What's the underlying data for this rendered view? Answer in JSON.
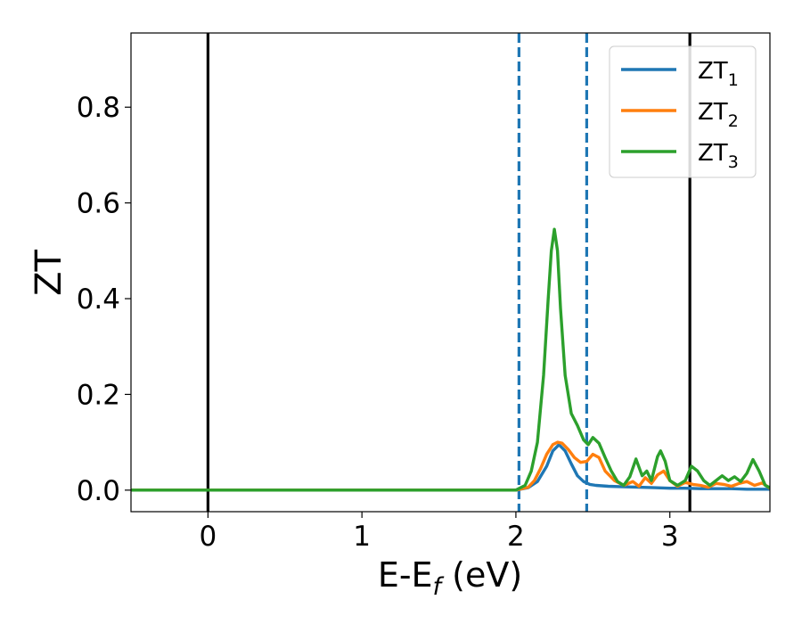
{
  "chart_data": {
    "type": "line",
    "xlabel": {
      "main": "E-E",
      "sub": "f",
      "suffix": " (eV)"
    },
    "ylabel": "ZT",
    "xlim": [
      -0.5,
      3.65
    ],
    "ylim": [
      -0.045,
      0.955
    ],
    "x_ticks": [
      {
        "value": 0,
        "label": "0"
      },
      {
        "value": 1,
        "label": "1"
      },
      {
        "value": 2,
        "label": "2"
      },
      {
        "value": 3,
        "label": "3"
      }
    ],
    "y_ticks": [
      {
        "value": 0.0,
        "label": "0.0"
      },
      {
        "value": 0.2,
        "label": "0.2"
      },
      {
        "value": 0.4,
        "label": "0.4"
      },
      {
        "value": 0.6,
        "label": "0.6"
      },
      {
        "value": 0.8,
        "label": "0.8"
      }
    ],
    "vertical_lines": [
      {
        "x": 0.0,
        "style": "solid",
        "color": "#000000"
      },
      {
        "x": 3.13,
        "style": "solid",
        "color": "#000000"
      },
      {
        "x": 2.02,
        "style": "dashed",
        "color": "#1f77b4"
      },
      {
        "x": 2.46,
        "style": "dashed",
        "color": "#1f77b4"
      }
    ],
    "legend_position": "top-right",
    "grid": false,
    "series": [
      {
        "name": {
          "main": "ZT",
          "sub": "1"
        },
        "color": "#1f77b4",
        "x": [
          -0.5,
          2.0,
          2.08,
          2.14,
          2.2,
          2.24,
          2.28,
          2.32,
          2.36,
          2.4,
          2.44,
          2.48,
          2.52,
          2.56,
          2.6,
          2.7,
          2.8,
          2.9,
          3.0,
          3.1,
          3.2,
          3.3,
          3.4,
          3.5,
          3.6,
          3.65
        ],
        "y": [
          0.0,
          0.0,
          0.005,
          0.018,
          0.05,
          0.082,
          0.095,
          0.082,
          0.055,
          0.03,
          0.018,
          0.012,
          0.01,
          0.009,
          0.008,
          0.007,
          0.006,
          0.005,
          0.004,
          0.004,
          0.003,
          0.003,
          0.003,
          0.002,
          0.002,
          0.002
        ]
      },
      {
        "name": {
          "main": "ZT",
          "sub": "2"
        },
        "color": "#ff7f0e",
        "x": [
          -0.5,
          2.0,
          2.08,
          2.12,
          2.16,
          2.2,
          2.24,
          2.27,
          2.3,
          2.34,
          2.38,
          2.42,
          2.46,
          2.5,
          2.54,
          2.58,
          2.64,
          2.7,
          2.76,
          2.8,
          2.84,
          2.88,
          2.92,
          2.96,
          3.0,
          3.05,
          3.1,
          3.15,
          3.2,
          3.25,
          3.3,
          3.35,
          3.4,
          3.45,
          3.5,
          3.55,
          3.6,
          3.65
        ],
        "y": [
          0.0,
          0.0,
          0.006,
          0.02,
          0.045,
          0.075,
          0.095,
          0.1,
          0.098,
          0.085,
          0.068,
          0.058,
          0.06,
          0.075,
          0.068,
          0.04,
          0.02,
          0.01,
          0.018,
          0.008,
          0.026,
          0.014,
          0.032,
          0.04,
          0.02,
          0.008,
          0.016,
          0.012,
          0.01,
          0.006,
          0.014,
          0.012,
          0.008,
          0.014,
          0.018,
          0.01,
          0.015,
          0.004
        ]
      },
      {
        "name": {
          "main": "ZT",
          "sub": "3"
        },
        "color": "#2ca02c",
        "x": [
          -0.5,
          2.0,
          2.06,
          2.1,
          2.14,
          2.18,
          2.21,
          2.23,
          2.25,
          2.27,
          2.29,
          2.32,
          2.36,
          2.4,
          2.44,
          2.47,
          2.5,
          2.54,
          2.58,
          2.62,
          2.66,
          2.7,
          2.74,
          2.78,
          2.82,
          2.85,
          2.88,
          2.92,
          2.94,
          2.97,
          3.0,
          3.05,
          3.1,
          3.14,
          3.18,
          3.22,
          3.26,
          3.3,
          3.34,
          3.38,
          3.42,
          3.46,
          3.5,
          3.54,
          3.58,
          3.62,
          3.65
        ],
        "y": [
          0.0,
          0.0,
          0.01,
          0.04,
          0.1,
          0.24,
          0.4,
          0.5,
          0.545,
          0.5,
          0.38,
          0.24,
          0.16,
          0.135,
          0.105,
          0.095,
          0.11,
          0.098,
          0.068,
          0.04,
          0.018,
          0.01,
          0.028,
          0.065,
          0.03,
          0.04,
          0.02,
          0.07,
          0.082,
          0.06,
          0.02,
          0.01,
          0.02,
          0.05,
          0.04,
          0.02,
          0.01,
          0.02,
          0.03,
          0.02,
          0.028,
          0.018,
          0.035,
          0.064,
          0.04,
          0.01,
          0.005
        ]
      }
    ]
  }
}
